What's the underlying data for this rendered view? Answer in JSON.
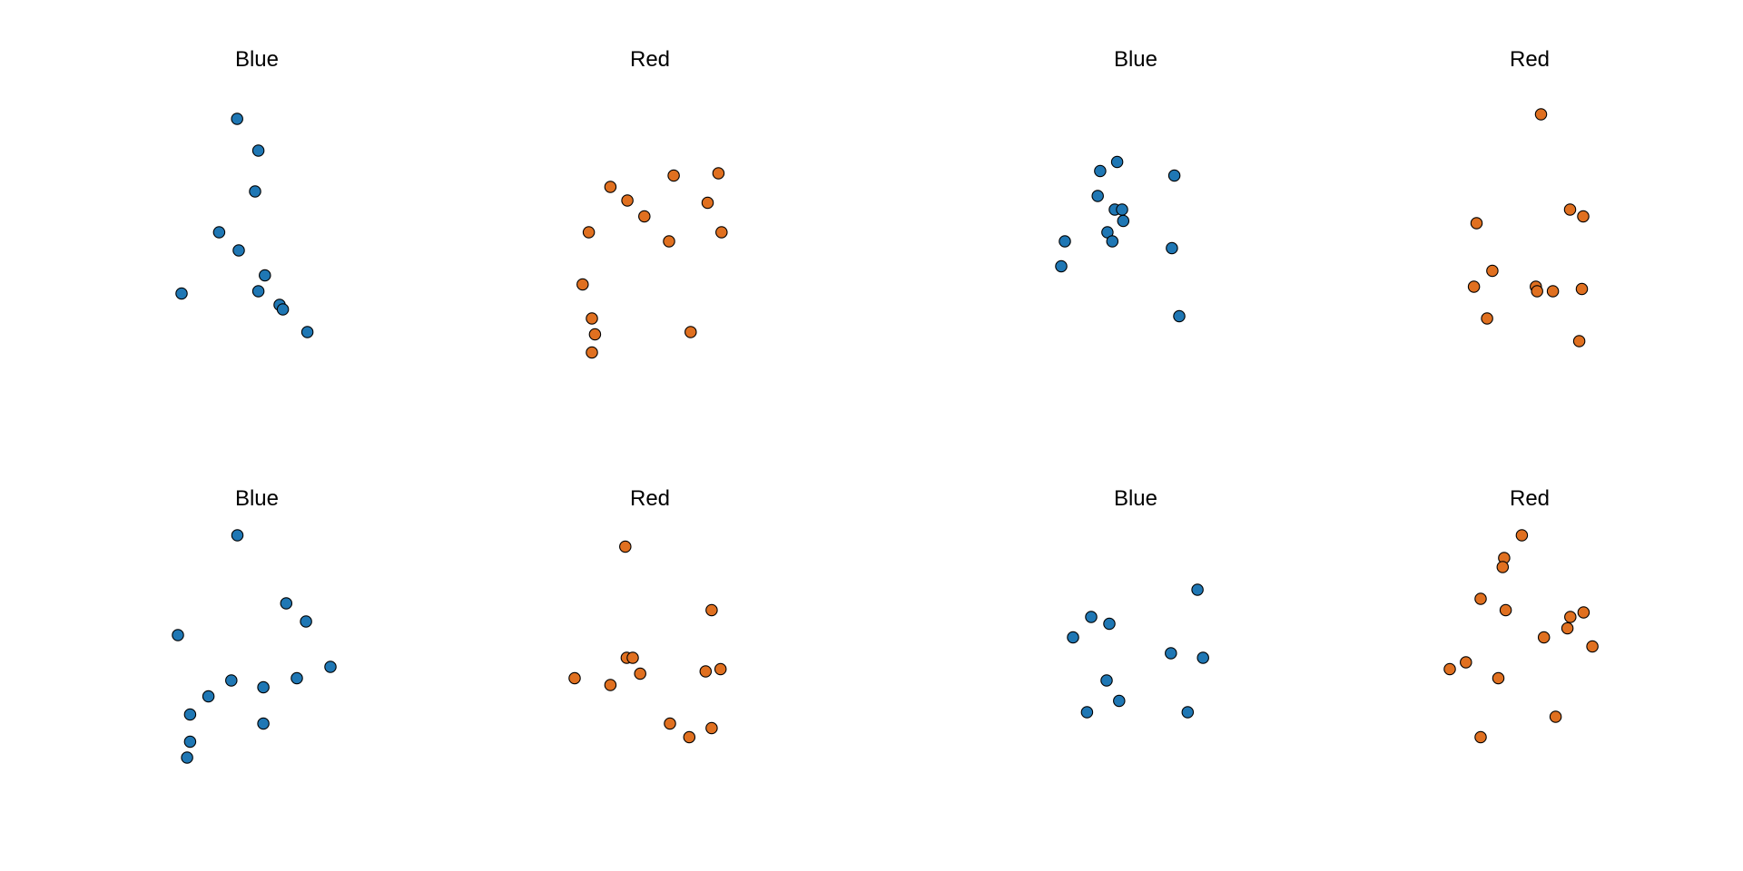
{
  "chart_data": [
    {
      "type": "scatter",
      "title": "Blue",
      "color": "#1f77b4",
      "points": [
        [
          0.34,
          0.1
        ],
        [
          0.47,
          0.24
        ],
        [
          0.45,
          0.42
        ],
        [
          0.23,
          0.6
        ],
        [
          0.35,
          0.68
        ],
        [
          0.51,
          0.79
        ],
        [
          0.47,
          0.86
        ],
        [
          0.0,
          0.87
        ],
        [
          0.6,
          0.92
        ],
        [
          0.62,
          0.94
        ],
        [
          0.77,
          1.04
        ]
      ]
    },
    {
      "type": "scatter",
      "title": "Red",
      "color": "#e07020",
      "points": [
        [
          0.22,
          0.4
        ],
        [
          0.33,
          0.46
        ],
        [
          0.44,
          0.53
        ],
        [
          0.63,
          0.35
        ],
        [
          0.92,
          0.34
        ],
        [
          0.85,
          0.47
        ],
        [
          0.94,
          0.6
        ],
        [
          0.08,
          0.6
        ],
        [
          0.6,
          0.64
        ],
        [
          0.04,
          0.83
        ],
        [
          0.1,
          0.98
        ],
        [
          0.12,
          1.05
        ],
        [
          0.1,
          1.13
        ],
        [
          0.74,
          1.04
        ]
      ]
    },
    {
      "type": "scatter",
      "title": "Blue",
      "color": "#1f77b4",
      "points": [
        [
          0.46,
          0.29
        ],
        [
          0.32,
          0.33
        ],
        [
          0.93,
          0.35
        ],
        [
          0.3,
          0.44
        ],
        [
          0.44,
          0.5
        ],
        [
          0.5,
          0.5
        ],
        [
          0.51,
          0.55
        ],
        [
          0.38,
          0.6
        ],
        [
          0.42,
          0.64
        ],
        [
          0.03,
          0.64
        ],
        [
          0.91,
          0.67
        ],
        [
          0.0,
          0.75
        ],
        [
          0.97,
          0.97
        ]
      ]
    },
    {
      "type": "scatter",
      "title": "Red",
      "color": "#e07020",
      "points": [
        [
          0.59,
          0.08
        ],
        [
          0.81,
          0.5
        ],
        [
          0.91,
          0.53
        ],
        [
          0.1,
          0.56
        ],
        [
          0.22,
          0.77
        ],
        [
          0.08,
          0.84
        ],
        [
          0.55,
          0.84
        ],
        [
          0.56,
          0.86
        ],
        [
          0.68,
          0.86
        ],
        [
          0.9,
          0.85
        ],
        [
          0.18,
          0.98
        ],
        [
          0.88,
          1.08
        ]
      ]
    },
    {
      "type": "scatter",
      "title": "Blue",
      "color": "#1f77b4",
      "points": [
        [
          0.39,
          0.0
        ],
        [
          0.71,
          0.3
        ],
        [
          0.84,
          0.38
        ],
        [
          0.0,
          0.44
        ],
        [
          1.0,
          0.58
        ],
        [
          0.78,
          0.63
        ],
        [
          0.35,
          0.64
        ],
        [
          0.56,
          0.67
        ],
        [
          0.2,
          0.71
        ],
        [
          0.08,
          0.79
        ],
        [
          0.56,
          0.83
        ],
        [
          0.08,
          0.91
        ],
        [
          0.06,
          0.98
        ]
      ]
    },
    {
      "type": "scatter",
      "title": "Red",
      "color": "#e07020",
      "points": [
        [
          0.34,
          0.05
        ],
        [
          0.92,
          0.33
        ],
        [
          0.35,
          0.54
        ],
        [
          0.39,
          0.54
        ],
        [
          0.98,
          0.59
        ],
        [
          0.88,
          0.6
        ],
        [
          0.44,
          0.61
        ],
        [
          0.0,
          0.63
        ],
        [
          0.24,
          0.66
        ],
        [
          0.64,
          0.83
        ],
        [
          0.92,
          0.85
        ],
        [
          0.77,
          0.89
        ]
      ]
    },
    {
      "type": "scatter",
      "title": "Blue",
      "color": "#1f77b4",
      "points": [
        [
          0.89,
          0.24
        ],
        [
          0.13,
          0.36
        ],
        [
          0.26,
          0.39
        ],
        [
          0.0,
          0.45
        ],
        [
          0.7,
          0.52
        ],
        [
          0.93,
          0.54
        ],
        [
          0.24,
          0.64
        ],
        [
          0.1,
          0.78
        ],
        [
          0.33,
          0.73
        ],
        [
          0.82,
          0.78
        ]
      ]
    },
    {
      "type": "scatter",
      "title": "Red",
      "color": "#e07020",
      "points": [
        [
          0.49,
          0.0
        ],
        [
          0.37,
          0.1
        ],
        [
          0.36,
          0.14
        ],
        [
          0.21,
          0.28
        ],
        [
          0.38,
          0.33
        ],
        [
          0.91,
          0.34
        ],
        [
          0.82,
          0.36
        ],
        [
          0.8,
          0.41
        ],
        [
          0.64,
          0.45
        ],
        [
          0.97,
          0.49
        ],
        [
          0.11,
          0.56
        ],
        [
          0.0,
          0.59
        ],
        [
          0.33,
          0.63
        ],
        [
          0.72,
          0.8
        ],
        [
          0.21,
          0.89
        ]
      ]
    }
  ]
}
